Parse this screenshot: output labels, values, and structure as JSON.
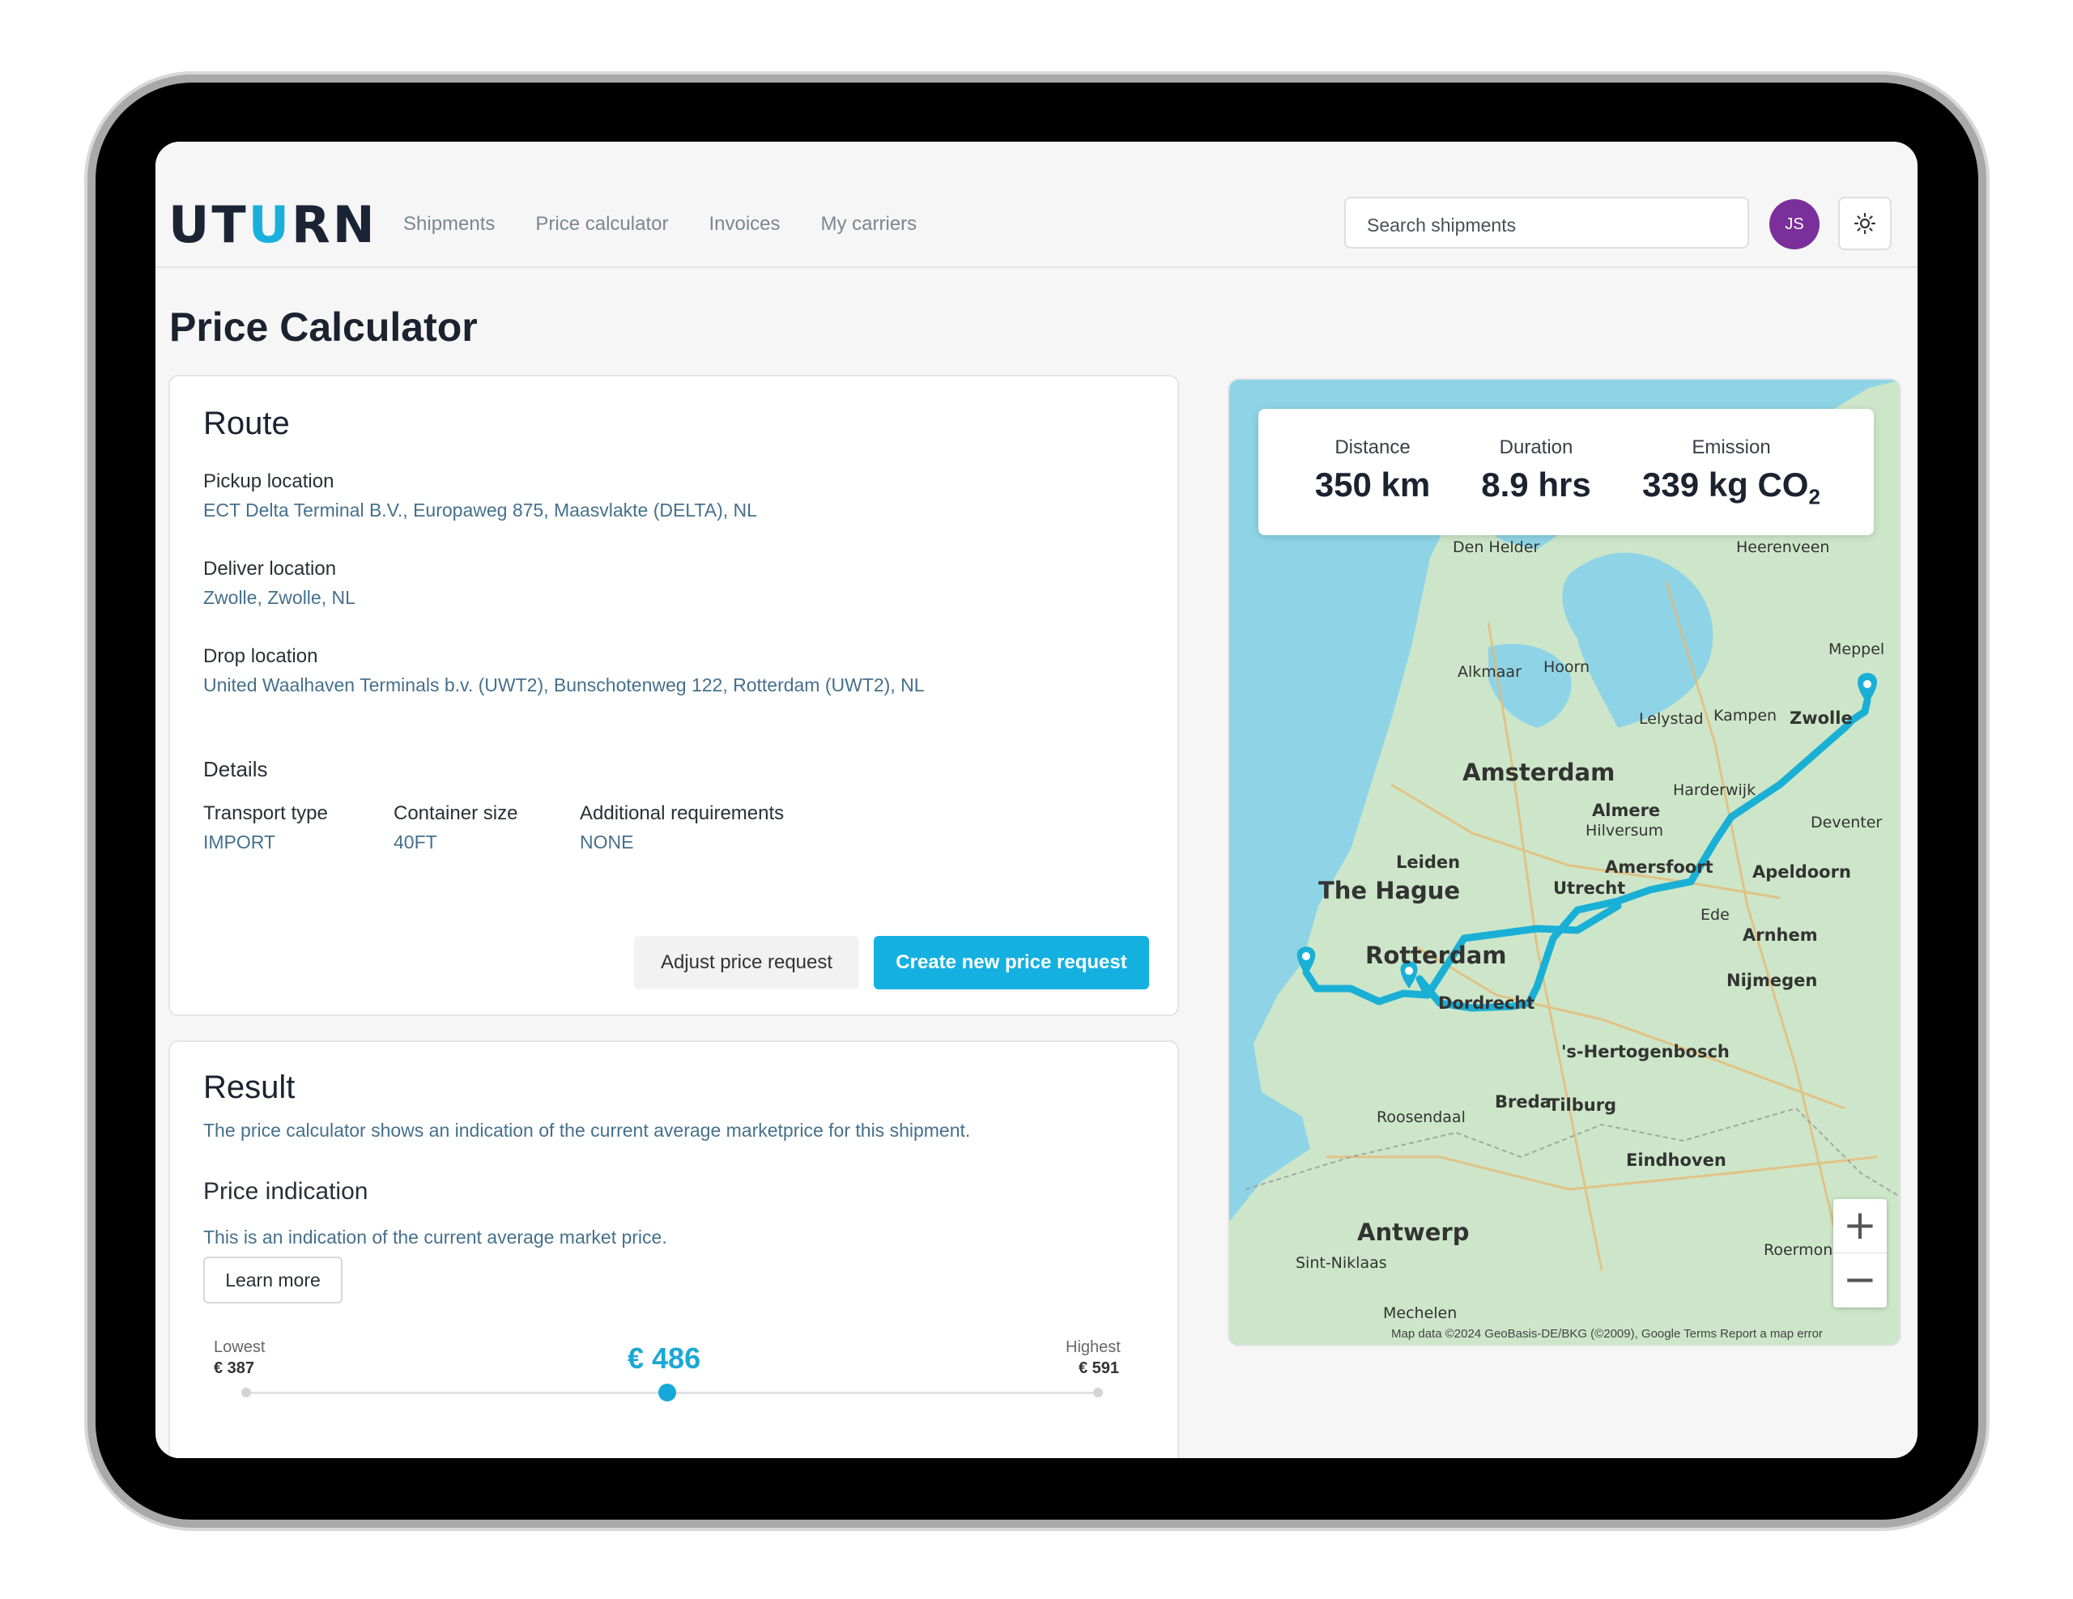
{
  "app": {
    "logo": "UTURN",
    "logo_parts": [
      "UT",
      "U",
      "RN"
    ]
  },
  "nav": {
    "items": [
      {
        "label": "Shipments"
      },
      {
        "label": "Price calculator"
      },
      {
        "label": "Invoices"
      },
      {
        "label": "My carriers"
      }
    ]
  },
  "search": {
    "placeholder": "Search shipments"
  },
  "user": {
    "initials": "JS"
  },
  "page": {
    "title": "Price Calculator"
  },
  "route": {
    "heading": "Route",
    "pickup": {
      "label": "Pickup location",
      "value": "ECT Delta Terminal B.V., Europaweg 875, Maasvlakte (DELTA), NL"
    },
    "deliver": {
      "label": "Deliver location",
      "value": "Zwolle, Zwolle, NL"
    },
    "drop": {
      "label": "Drop location",
      "value": "United Waalhaven Terminals b.v. (UWT2), Bunschotenweg 122, Rotterdam (UWT2), NL"
    },
    "details": {
      "heading": "Details",
      "transport": {
        "label": "Transport type",
        "value": "IMPORT"
      },
      "container": {
        "label": "Container size",
        "value": "40FT"
      },
      "requirements": {
        "label": "Additional requirements",
        "value": "NONE"
      }
    },
    "adjust_label": "Adjust price request",
    "create_label": "Create new price request"
  },
  "result": {
    "heading": "Result",
    "description": "The price calculator shows an indication of the current average marketprice for this shipment.",
    "indication_heading": "Price indication",
    "indication_text": "This is an indication of the current average market price.",
    "learn_more": "Learn more",
    "lowest_label": "Lowest",
    "lowest_value": "€ 387",
    "highest_label": "Highest",
    "highest_value": "€ 591",
    "price": "€ 486"
  },
  "map": {
    "stats": {
      "distance": {
        "label": "Distance",
        "value": "350 km"
      },
      "duration": {
        "label": "Duration",
        "value": "8.9 hrs"
      },
      "emission": {
        "label": "Emission",
        "value": "339 kg CO",
        "sub": "2"
      }
    },
    "places": [
      "Den Helder",
      "Heerenveen",
      "Alkmaar",
      "Hoorn",
      "Meppel",
      "Lelystad",
      "Kampen",
      "Zwolle",
      "Amsterdam",
      "Almere",
      "Harderwijk",
      "Hilversum",
      "Deventer",
      "Leiden",
      "Amersfoort",
      "Apeldoorn",
      "The Hague",
      "Utrecht",
      "Ede",
      "Arnhem",
      "Rotterdam",
      "Dordrecht",
      "Nijmegen",
      "'s-Hertogenbosch",
      "Breda",
      "Tilburg",
      "Roosendaal",
      "Eindhoven",
      "Antwerp",
      "Sint-Niklaas",
      "Roermond",
      "Mechelen"
    ],
    "attribution": "Map data ©2024 GeoBasis-DE/BKG (©2009), Google   Terms   Report a map error",
    "zoom_in": "+",
    "zoom_out": "−",
    "route_color": "#1ab0d6"
  }
}
